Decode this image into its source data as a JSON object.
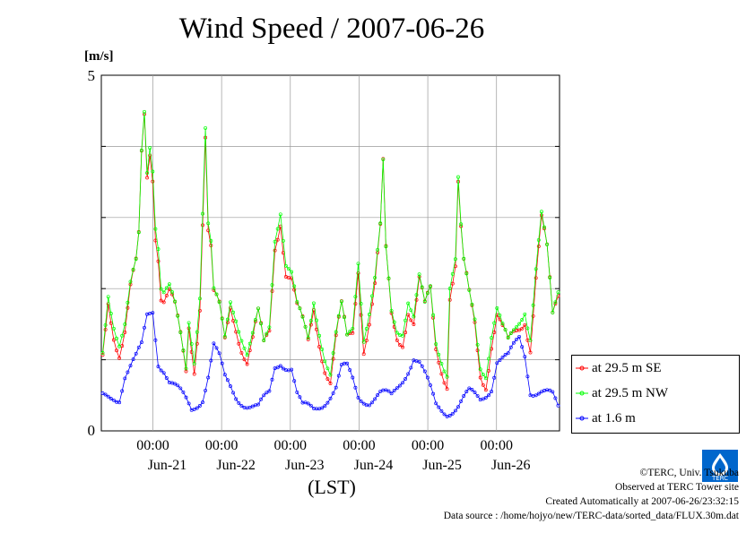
{
  "chart_data": {
    "type": "line",
    "title": "Wind Speed / 2007-06-26",
    "ylabel": "[m/s]",
    "xlabel": "(LST)",
    "ylim": [
      0,
      5
    ],
    "y_ticks": [
      "0",
      "5"
    ],
    "x_ticks": [
      {
        "time": "00:00",
        "day": "Jun-21"
      },
      {
        "time": "00:00",
        "day": "Jun-22"
      },
      {
        "time": "00:00",
        "day": "Jun-23"
      },
      {
        "time": "00:00",
        "day": "Jun-24"
      },
      {
        "time": "00:00",
        "day": "Jun-25"
      },
      {
        "time": "00:00",
        "day": "Jun-26"
      }
    ],
    "x_start_hours_before_jun21": 18,
    "x_end_hours_after_jun26": 22,
    "grid": true,
    "legend_position": "right",
    "series": [
      {
        "name": "at 29.5 m SE",
        "color": "#ff0000"
      },
      {
        "name": "at 29.5 m NW",
        "color": "#00ff00"
      },
      {
        "name": "at 1.6 m",
        "color": "#0000ff"
      }
    ],
    "anchors_high": [
      [
        0,
        1.0
      ],
      [
        2,
        1.9
      ],
      [
        4,
        1.5
      ],
      [
        6,
        1.2
      ],
      [
        8,
        1.4
      ],
      [
        10,
        1.9
      ],
      [
        12,
        2.2
      ],
      [
        13,
        2.6
      ],
      [
        14,
        3.8
      ],
      [
        15,
        4.4
      ],
      [
        16,
        3.6
      ],
      [
        17,
        4.0
      ],
      [
        18,
        3.7
      ],
      [
        19,
        2.9
      ],
      [
        20,
        2.6
      ],
      [
        21,
        2.0
      ],
      [
        22,
        1.9
      ],
      [
        24,
        1.9
      ],
      [
        26,
        1.6
      ],
      [
        28,
        1.2
      ],
      [
        30,
        0.8
      ],
      [
        31,
        1.5
      ],
      [
        33,
        1.0
      ],
      [
        35,
        1.9
      ],
      [
        37,
        4.2
      ],
      [
        38,
        2.8
      ],
      [
        39,
        2.5
      ],
      [
        40,
        1.8
      ],
      [
        42,
        1.6
      ],
      [
        44,
        1.2
      ],
      [
        46,
        1.8
      ],
      [
        48,
        1.6
      ],
      [
        50,
        1.3
      ],
      [
        52,
        1.0
      ],
      [
        54,
        1.2
      ],
      [
        56,
        1.5
      ],
      [
        58,
        1.1
      ],
      [
        60,
        1.4
      ],
      [
        62,
        2.7
      ],
      [
        64,
        3.1
      ],
      [
        66,
        2.3
      ],
      [
        68,
        2.1
      ],
      [
        70,
        1.6
      ],
      [
        72,
        1.4
      ],
      [
        74,
        1.2
      ],
      [
        76,
        1.8
      ],
      [
        78,
        1.4
      ],
      [
        80,
        1.0
      ],
      [
        82,
        0.7
      ],
      [
        84,
        1.2
      ],
      [
        86,
        1.6
      ],
      [
        88,
        1.2
      ],
      [
        90,
        1.4
      ],
      [
        92,
        2.4
      ],
      [
        94,
        1.3
      ],
      [
        96,
        1.6
      ],
      [
        98,
        2.0
      ],
      [
        100,
        2.7
      ],
      [
        101,
        3.6
      ],
      [
        102,
        2.4
      ],
      [
        104,
        1.6
      ],
      [
        106,
        1.4
      ],
      [
        108,
        1.4
      ],
      [
        110,
        1.8
      ],
      [
        112,
        1.5
      ],
      [
        114,
        2.0
      ],
      [
        116,
        1.6
      ],
      [
        118,
        1.9
      ],
      [
        120,
        1.2
      ],
      [
        122,
        1.0
      ],
      [
        124,
        0.8
      ],
      [
        125,
        2.0
      ],
      [
        127,
        2.3
      ],
      [
        128,
        3.4
      ],
      [
        129,
        2.7
      ],
      [
        130,
        2.2
      ],
      [
        132,
        1.8
      ],
      [
        134,
        1.5
      ],
      [
        136,
        0.9
      ],
      [
        138,
        0.8
      ],
      [
        140,
        1.3
      ],
      [
        142,
        1.6
      ],
      [
        144,
        1.3
      ],
      [
        146,
        1.1
      ],
      [
        148,
        1.3
      ],
      [
        150,
        1.5
      ],
      [
        152,
        1.7
      ],
      [
        154,
        1.3
      ],
      [
        156,
        2.2
      ],
      [
        158,
        2.9
      ],
      [
        160,
        2.4
      ],
      [
        162,
        1.5
      ],
      [
        164,
        1.9
      ]
    ],
    "anchors_low": [
      [
        0,
        0.45
      ],
      [
        4,
        0.5
      ],
      [
        6,
        0.5
      ],
      [
        8,
        0.8
      ],
      [
        10,
        0.9
      ],
      [
        12,
        1.0
      ],
      [
        14,
        1.15
      ],
      [
        16,
        1.6
      ],
      [
        18,
        1.7
      ],
      [
        20,
        1.0
      ],
      [
        22,
        0.9
      ],
      [
        24,
        0.7
      ],
      [
        28,
        0.5
      ],
      [
        32,
        0.3
      ],
      [
        36,
        0.5
      ],
      [
        38,
        0.8
      ],
      [
        40,
        1.2
      ],
      [
        42,
        1.0
      ],
      [
        44,
        0.7
      ],
      [
        48,
        0.5
      ],
      [
        52,
        0.4
      ],
      [
        56,
        0.3
      ],
      [
        60,
        0.5
      ],
      [
        62,
        0.9
      ],
      [
        64,
        1.0
      ],
      [
        66,
        0.95
      ],
      [
        68,
        0.9
      ],
      [
        70,
        0.5
      ],
      [
        72,
        0.3
      ],
      [
        76,
        0.3
      ],
      [
        80,
        0.45
      ],
      [
        84,
        0.6
      ],
      [
        86,
        0.85
      ],
      [
        88,
        0.85
      ],
      [
        90,
        0.7
      ],
      [
        92,
        0.5
      ],
      [
        96,
        0.45
      ],
      [
        100,
        0.5
      ],
      [
        104,
        0.45
      ],
      [
        108,
        0.75
      ],
      [
        110,
        0.9
      ],
      [
        112,
        1.05
      ],
      [
        114,
        0.95
      ],
      [
        116,
        0.75
      ],
      [
        120,
        0.35
      ],
      [
        124,
        0.3
      ],
      [
        128,
        0.35
      ],
      [
        132,
        0.5
      ],
      [
        136,
        0.45
      ],
      [
        140,
        0.65
      ],
      [
        142,
        1.0
      ],
      [
        144,
        1.0
      ],
      [
        146,
        1.0
      ],
      [
        148,
        1.15
      ],
      [
        150,
        1.3
      ],
      [
        152,
        1.1
      ],
      [
        154,
        0.6
      ],
      [
        158,
        0.55
      ],
      [
        162,
        0.45
      ],
      [
        164,
        0.3
      ]
    ]
  },
  "legend": {
    "se": "at 29.5 m SE",
    "nw": "at 29.5 m NW",
    "low": "at 1.6 m"
  },
  "footer": {
    "copyright": "©TERC, Univ. Tsukuba",
    "site": "Observed at TERC Tower site",
    "created": "Created Automatically at 2007-06-26/23:32:15",
    "source": "Data source : /home/hojyo/new/TERC-data/sorted_data/FLUX.30m.dat"
  },
  "logo": {
    "text": "TERC",
    "icon": "terc-drop-logo-icon",
    "color": "#0066cc"
  }
}
